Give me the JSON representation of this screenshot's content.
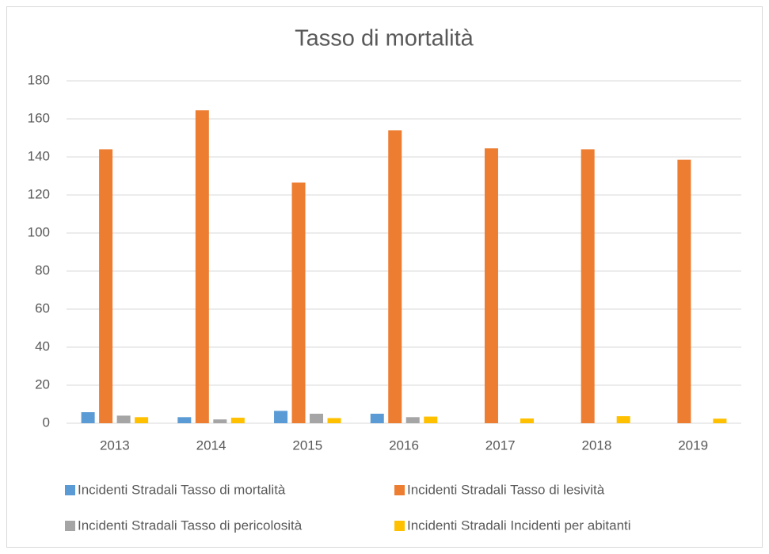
{
  "chart_data": {
    "type": "bar",
    "title": "Tasso di mortalità",
    "categories": [
      "2013",
      "2014",
      "2015",
      "2016",
      "2017",
      "2018",
      "2019"
    ],
    "series": [
      {
        "name": "Incidenti Stradali Tasso di mortalità",
        "color": "#5b9bd5",
        "values": [
          5.8,
          3.2,
          6.5,
          5.0,
          null,
          null,
          null
        ]
      },
      {
        "name": "Incidenti Stradali Tasso di lesività",
        "color": "#ed7d31",
        "values": [
          144,
          164.5,
          126.5,
          154,
          144.5,
          144,
          138.5
        ]
      },
      {
        "name": "Incidenti Stradali Tasso di pericolosità",
        "color": "#a5a5a5",
        "values": [
          4.0,
          2.0,
          5.0,
          3.2,
          null,
          null,
          null
        ]
      },
      {
        "name": "Incidenti Stradali Incidenti per abitanti",
        "color": "#ffc000",
        "values": [
          3.2,
          2.9,
          2.7,
          3.5,
          2.5,
          3.7,
          2.4
        ]
      }
    ],
    "ylim": [
      0,
      180
    ],
    "yticks": [
      0,
      20,
      40,
      60,
      80,
      100,
      120,
      140,
      160,
      180
    ],
    "grid": true,
    "legend": "bottom"
  }
}
